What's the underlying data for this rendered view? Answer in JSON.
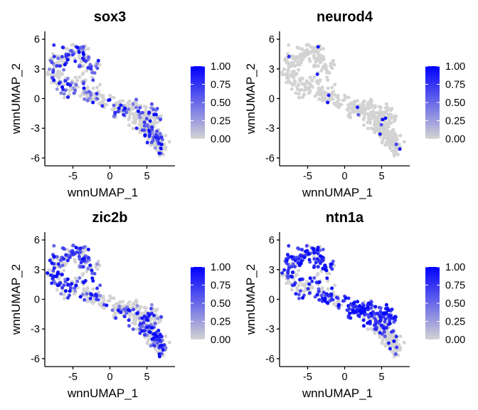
{
  "chart_data": [
    {
      "type": "scatter",
      "title": "sox3",
      "xlabel": "wnnUMAP_1",
      "ylabel": "wnnUMAP_2",
      "xticks": [
        -5,
        0,
        5
      ],
      "yticks": [
        -6,
        -3,
        0,
        3,
        6
      ],
      "xlim": [
        -8.8,
        8.8
      ],
      "ylim": [
        -6.8,
        6.8
      ],
      "legend": {
        "ticks": [
          "1.00",
          "0.75",
          "0.50",
          "0.25",
          "0.00"
        ],
        "low_color": "#d3d3d3",
        "high_color": "#0000ff",
        "placement": "right"
      },
      "expression_profile": "scattered-moderate",
      "seed": 11
    },
    {
      "type": "scatter",
      "title": "neurod4",
      "xlabel": "wnnUMAP_1",
      "ylabel": "wnnUMAP_2",
      "xticks": [
        -5,
        0,
        5
      ],
      "yticks": [
        -6,
        -3,
        0,
        3,
        6
      ],
      "xlim": [
        -8.8,
        8.8
      ],
      "ylim": [
        -6.8,
        6.8
      ],
      "legend": {
        "ticks": [
          "1.00",
          "0.75",
          "0.50",
          "0.25",
          "0.00"
        ],
        "low_color": "#d3d3d3",
        "high_color": "#0000ff",
        "placement": "right"
      },
      "expression_profile": "sparse",
      "seed": 23
    },
    {
      "type": "scatter",
      "title": "zic2b",
      "xlabel": "wnnUMAP_1",
      "ylabel": "wnnUMAP_2",
      "xticks": [
        -5,
        0,
        5
      ],
      "yticks": [
        -6,
        -3,
        0,
        3,
        6
      ],
      "xlim": [
        -8.8,
        8.8
      ],
      "ylim": [
        -6.8,
        6.8
      ],
      "legend": {
        "ticks": [
          "1.00",
          "0.75",
          "0.50",
          "0.25",
          "0.00"
        ],
        "low_color": "#d3d3d3",
        "high_color": "#0000ff",
        "placement": "right"
      },
      "expression_profile": "ring-and-lower",
      "seed": 37
    },
    {
      "type": "scatter",
      "title": "ntn1a",
      "xlabel": "wnnUMAP_1",
      "ylabel": "wnnUMAP_2",
      "xticks": [
        -5,
        0,
        5
      ],
      "yticks": [
        -6,
        -3,
        0,
        3,
        6
      ],
      "xlim": [
        -8.8,
        8.8
      ],
      "ylim": [
        -6.8,
        6.8
      ],
      "legend": {
        "ticks": [
          "1.00",
          "0.75",
          "0.50",
          "0.25",
          "0.00"
        ],
        "low_color": "#d3d3d3",
        "high_color": "#0000ff",
        "placement": "right"
      },
      "expression_profile": "ring-top-and-middle-high",
      "seed": 51
    }
  ]
}
